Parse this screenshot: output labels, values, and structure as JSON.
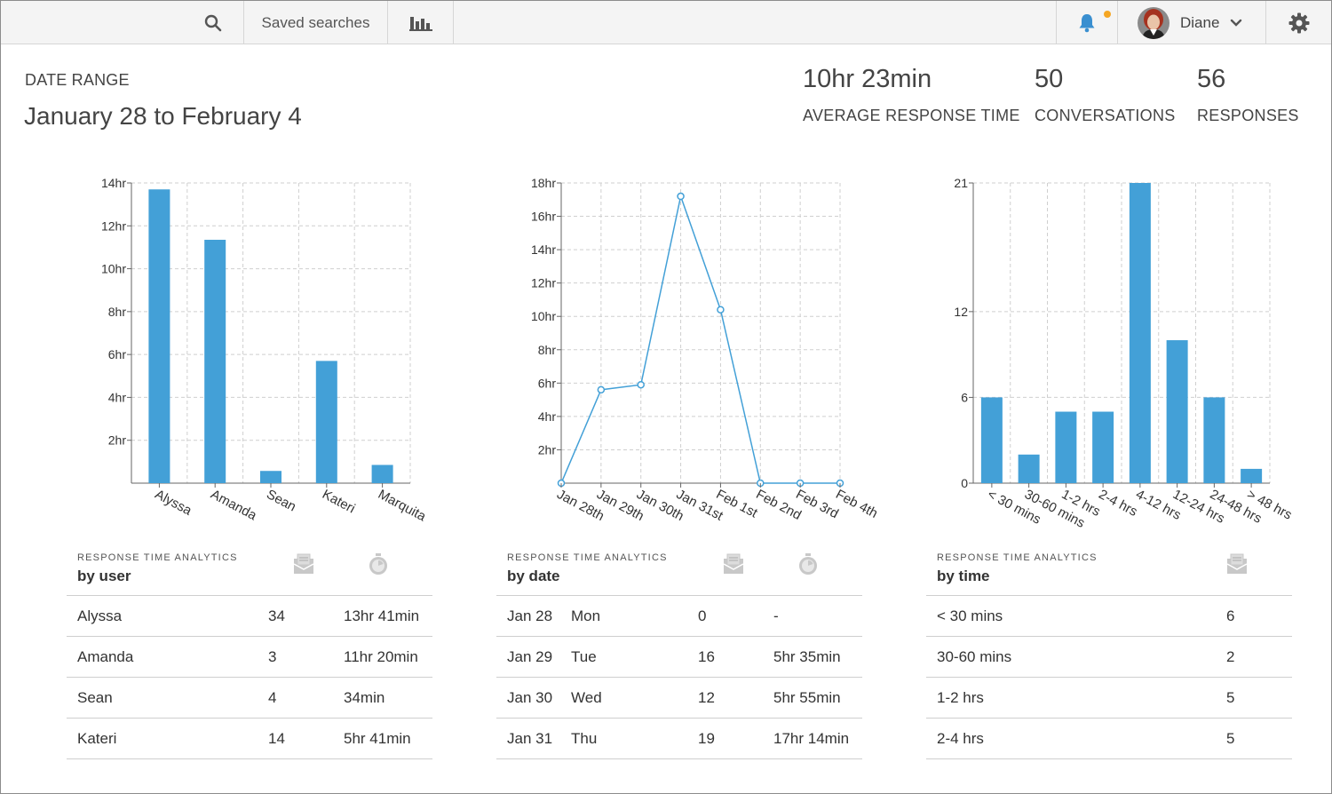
{
  "topbar": {
    "saved_searches_label": "Saved searches",
    "user_name": "Diane",
    "icons": [
      "search-icon",
      "bar-chart-icon",
      "bell-icon",
      "chevron-down-icon",
      "gear-icon"
    ],
    "notification_color": "#f5a623"
  },
  "header": {
    "date_range_label": "DATE RANGE",
    "date_range_value": "January 28 to February 4",
    "metrics": [
      {
        "value": "10hr 23min",
        "label": "AVERAGE RESPONSE TIME"
      },
      {
        "value": "50",
        "label": "CONVERSATIONS"
      },
      {
        "value": "56",
        "label": "RESPONSES"
      }
    ]
  },
  "colors": {
    "accent": "#43a0d7",
    "grid": "#cfcfcf"
  },
  "chart_data": [
    {
      "type": "bar",
      "categories": [
        "Alyssa",
        "Amanda",
        "Sean",
        "Kateri",
        "Marquita"
      ],
      "values": [
        13.7,
        11.35,
        0.57,
        5.7,
        0.85
      ],
      "ylim": [
        0,
        14
      ],
      "y_ticks": [
        2,
        4,
        6,
        8,
        10,
        12,
        14
      ],
      "y_tick_labels": [
        "2hr",
        "4hr",
        "6hr",
        "8hr",
        "10hr",
        "12hr",
        "14hr"
      ],
      "xlabel": "",
      "ylabel": "",
      "grid": true
    },
    {
      "type": "line",
      "categories": [
        "Jan 28th",
        "Jan 29th",
        "Jan 30th",
        "Jan 31st",
        "Feb 1st",
        "Feb 2nd",
        "Feb 3rd",
        "Feb 4th"
      ],
      "values": [
        0,
        5.6,
        5.9,
        17.2,
        10.4,
        0,
        0,
        0
      ],
      "ylim": [
        0,
        18
      ],
      "y_ticks": [
        2,
        4,
        6,
        8,
        10,
        12,
        14,
        16,
        18
      ],
      "y_tick_labels": [
        "2hr",
        "4hr",
        "6hr",
        "8hr",
        "10hr",
        "12hr",
        "14hr",
        "16hr",
        "18hr"
      ],
      "xlabel": "",
      "ylabel": "",
      "grid": true
    },
    {
      "type": "bar",
      "categories": [
        "< 30 mins",
        "30-60 mins",
        "1-2 hrs",
        "2-4 hrs",
        "4-12 hrs",
        "12-24 hrs",
        "24-48 hrs",
        "> 48 hrs"
      ],
      "values": [
        6,
        2,
        5,
        5,
        21,
        10,
        6,
        1
      ],
      "ylim": [
        0,
        21
      ],
      "y_ticks": [
        0,
        6,
        12,
        21
      ],
      "y_tick_labels": [
        "0",
        "6",
        "12",
        "21"
      ],
      "xlabel": "",
      "ylabel": "",
      "grid": true
    }
  ],
  "tables": {
    "by_user": {
      "subtitle": "RESPONSE TIME ANALYTICS",
      "title": "by user",
      "icons": [
        "envelope-icon",
        "stopwatch-icon"
      ],
      "rows": [
        [
          "Alyssa",
          "34",
          "13hr 41min"
        ],
        [
          "Amanda",
          "3",
          "11hr 20min"
        ],
        [
          "Sean",
          "4",
          "34min"
        ],
        [
          "Kateri",
          "14",
          "5hr 41min"
        ]
      ]
    },
    "by_date": {
      "subtitle": "RESPONSE TIME ANALYTICS",
      "title": "by date",
      "icons": [
        "envelope-icon",
        "stopwatch-icon"
      ],
      "rows": [
        [
          "Jan 28",
          "Mon",
          "0",
          "-"
        ],
        [
          "Jan 29",
          "Tue",
          "16",
          "5hr 35min"
        ],
        [
          "Jan 30",
          "Wed",
          "12",
          "5hr 55min"
        ],
        [
          "Jan 31",
          "Thu",
          "19",
          "17hr 14min"
        ]
      ]
    },
    "by_time": {
      "subtitle": "RESPONSE TIME ANALYTICS",
      "title": "by time",
      "icons": [
        "envelope-icon"
      ],
      "rows": [
        [
          "< 30 mins",
          "6"
        ],
        [
          "30-60 mins",
          "2"
        ],
        [
          "1-2 hrs",
          "5"
        ],
        [
          "2-4 hrs",
          "5"
        ]
      ]
    }
  }
}
